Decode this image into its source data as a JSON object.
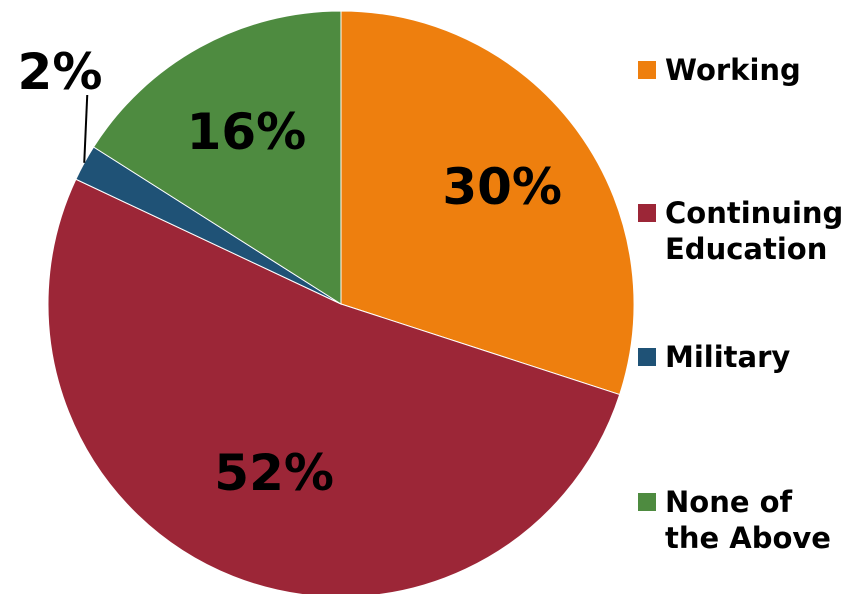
{
  "chart_data": {
    "type": "pie",
    "categories": [
      "Working",
      "Continuing\nEducation",
      "Military",
      "None of\nthe Above"
    ],
    "values": [
      30,
      52,
      2,
      16
    ],
    "data_labels": [
      "30%",
      "52%",
      "2%",
      "16%"
    ],
    "colors": [
      "#EE7F0E",
      "#9C2637",
      "#1F5276",
      "#4E8B40"
    ],
    "legend": "right"
  }
}
